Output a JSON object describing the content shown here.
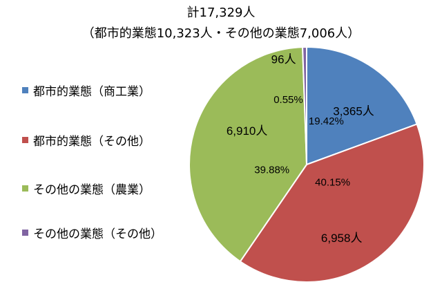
{
  "title_line1": "計17,329人",
  "title_line2": "（都市的業態10,323人・その他の業態7,006人）",
  "legend_position": "left",
  "chart_data": {
    "type": "pie",
    "title": "計17,329人",
    "subtitle": "（都市的業態10,323人・その他の業態7,006人）",
    "start_angle_deg": 0,
    "direction": "clockwise",
    "slices": [
      {
        "label": "都市的業態（商工業）",
        "value": 3365,
        "value_label": "3,365人",
        "percent_label": "19.42%",
        "color": "#4F81BD"
      },
      {
        "label": "都市的業態（その他）",
        "value": 6958,
        "value_label": "6,958人",
        "percent_label": "40.15%",
        "color": "#C0504D"
      },
      {
        "label": "その他の業態（農業）",
        "value": 6910,
        "value_label": "6,910人",
        "percent_label": "39.88%",
        "color": "#9BBB59"
      },
      {
        "label": "その他の業態（その他）",
        "value": 96,
        "value_label": "96人",
        "percent_label": "0.55%",
        "color": "#8064A2"
      }
    ]
  }
}
